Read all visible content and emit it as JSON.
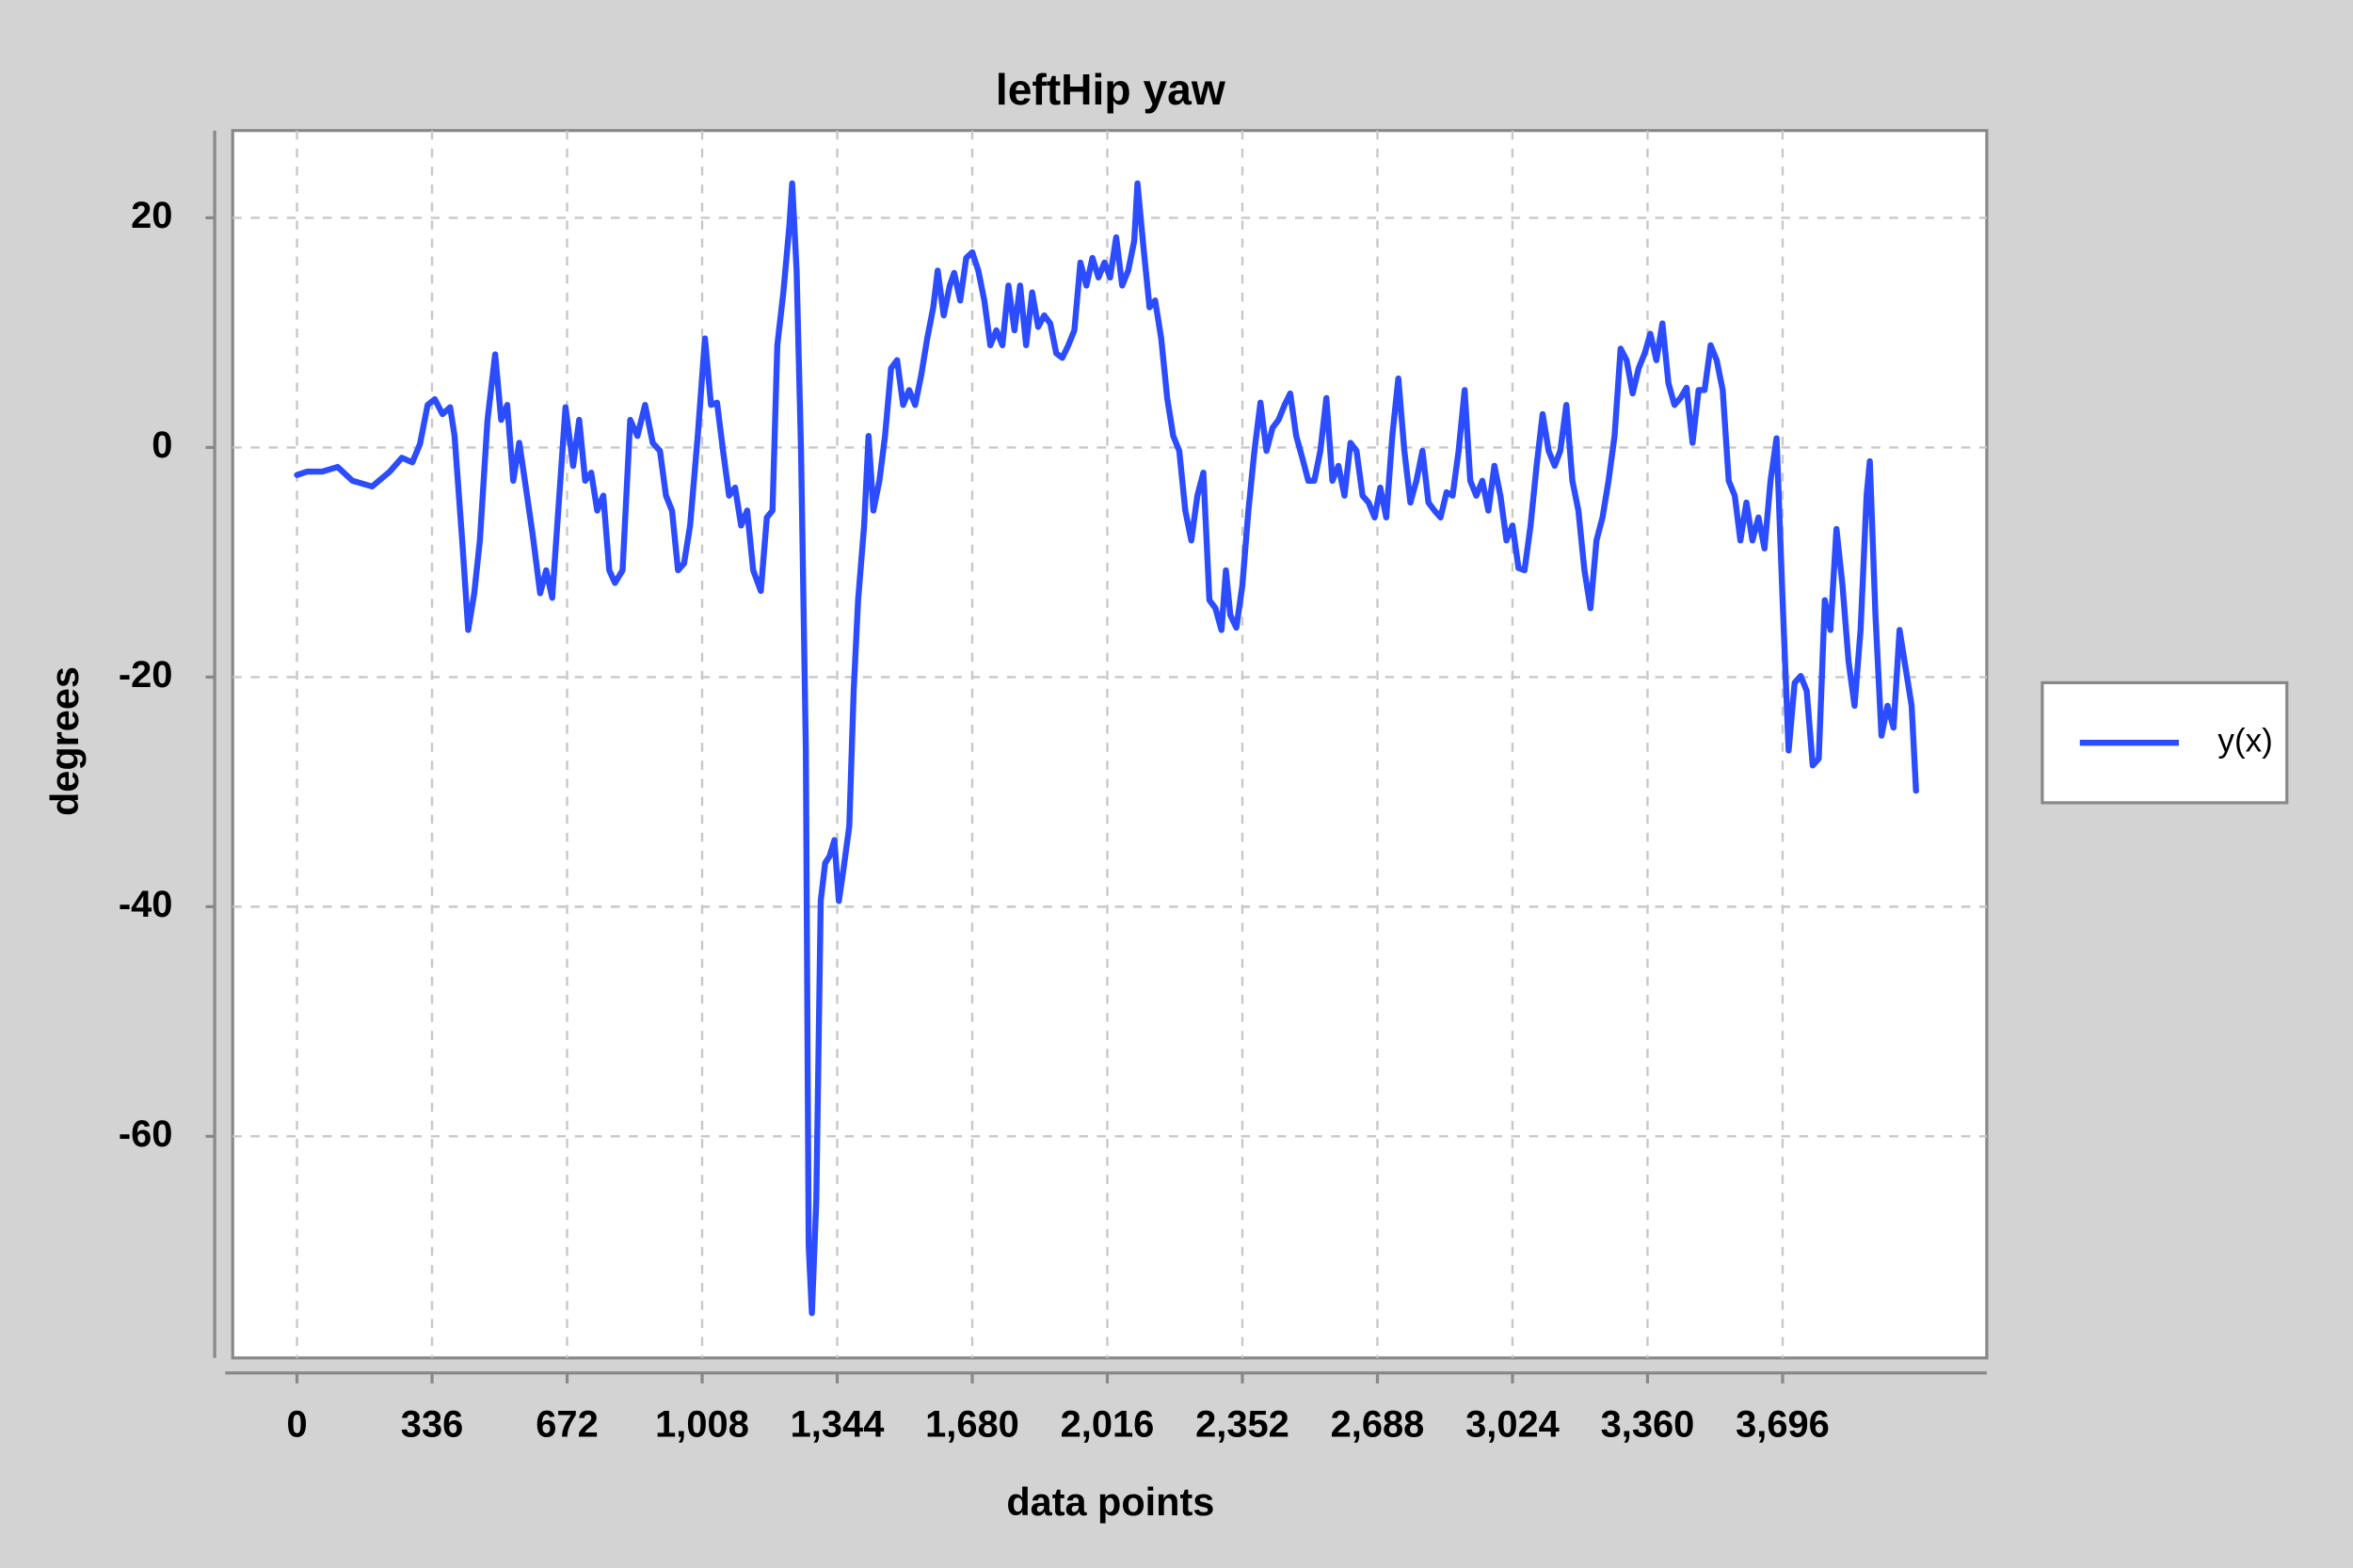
{
  "chart_data": {
    "type": "line",
    "title": "leftHip yaw",
    "xlabel": "data points",
    "ylabel": "degrees",
    "x": [
      0,
      26,
      63,
      101,
      138,
      187,
      231,
      261,
      287,
      306,
      325,
      343,
      362,
      381,
      392,
      411,
      426,
      441,
      455,
      474,
      493,
      508,
      523,
      538,
      553,
      567,
      586,
      605,
      620,
      635,
      650,
      668,
      687,
      702,
      717,
      732,
      747,
      762,
      777,
      791,
      810,
      829,
      847,
      866,
      885,
      903,
      918,
      933,
      948,
      963,
      978,
      997,
      1015,
      1030,
      1045,
      1060,
      1075,
      1090,
      1105,
      1120,
      1135,
      1154,
      1169,
      1183,
      1195,
      1210,
      1225,
      1232,
      1243,
      1254,
      1266,
      1273,
      1281,
      1292,
      1303,
      1314,
      1325,
      1337,
      1348,
      1359,
      1374,
      1385,
      1396,
      1411,
      1422,
      1434,
      1449,
      1463,
      1478,
      1493,
      1508,
      1523,
      1538,
      1553,
      1568,
      1583,
      1594,
      1609,
      1624,
      1635,
      1650,
      1665,
      1680,
      1695,
      1710,
      1725,
      1740,
      1755,
      1770,
      1785,
      1799,
      1814,
      1829,
      1844,
      1859,
      1874,
      1889,
      1904,
      1919,
      1934,
      1949,
      1964,
      1979,
      1994,
      2009,
      2023,
      2038,
      2053,
      2068,
      2083,
      2091,
      2106,
      2121,
      2135,
      2150,
      2165,
      2180,
      2195,
      2210,
      2225,
      2240,
      2255,
      2270,
      2285,
      2300,
      2311,
      2322,
      2337,
      2352,
      2367,
      2382,
      2397,
      2412,
      2427,
      2442,
      2457,
      2471,
      2486,
      2501,
      2516,
      2531,
      2546,
      2561,
      2576,
      2591,
      2606,
      2621,
      2636,
      2651,
      2666,
      2681,
      2695,
      2710,
      2725,
      2740,
      2755,
      2770,
      2785,
      2800,
      2815,
      2830,
      2845,
      2860,
      2875,
      2890,
      2905,
      2919,
      2934,
      2949,
      2964,
      2979,
      2994,
      3009,
      3024,
      3039,
      3054,
      3069,
      3084,
      3099,
      3114,
      3129,
      3143,
      3158,
      3173,
      3188,
      3203,
      3218,
      3233,
      3248,
      3263,
      3278,
      3293,
      3308,
      3323,
      3338,
      3353,
      3367,
      3382,
      3397,
      3412,
      3427,
      3442,
      3457,
      3472,
      3487,
      3502,
      3517,
      3532,
      3547,
      3562,
      3577,
      3591,
      3606,
      3621,
      3636,
      3651,
      3666,
      3681,
      3696,
      3711,
      3726,
      3741,
      3756,
      3771,
      3786,
      3801,
      3815,
      3830,
      3845,
      3860,
      3875,
      3890,
      3905,
      3913,
      3927,
      3942,
      3957,
      3972,
      3987,
      4002,
      4017,
      4028
    ],
    "series": [
      {
        "name": "y(x)",
        "color": "#2b4cff",
        "values": [
          -2.4,
          -2.1,
          -2.1,
          -1.7,
          -2.9,
          -3.4,
          -2.1,
          -0.9,
          -1.3,
          0.3,
          3.7,
          4.2,
          2.9,
          3.5,
          1.0,
          -8.1,
          -15.9,
          -12.7,
          -8.1,
          2.4,
          8.1,
          2.4,
          3.7,
          -2.9,
          0.4,
          -2.9,
          -7.5,
          -12.7,
          -10.7,
          -13.1,
          -5.5,
          3.5,
          -1.6,
          2.4,
          -2.9,
          -2.2,
          -5.5,
          -4.2,
          -10.7,
          -11.8,
          -10.7,
          2.4,
          1.0,
          3.7,
          0.4,
          -0.3,
          -4.2,
          -5.5,
          -10.7,
          -10.1,
          -6.8,
          1.0,
          9.5,
          3.7,
          3.9,
          -0.3,
          -4.2,
          -3.5,
          -6.8,
          -5.5,
          -10.7,
          -12.5,
          -6.1,
          -5.5,
          8.9,
          13.5,
          19.3,
          23.0,
          15.4,
          -0.3,
          -26.4,
          -69.5,
          -75.4,
          -65.6,
          -39.5,
          -36.2,
          -35.6,
          -34.2,
          -39.5,
          -36.9,
          -33.0,
          -21.2,
          -13.3,
          -6.8,
          1.0,
          -5.5,
          -2.9,
          1.0,
          6.9,
          7.6,
          3.7,
          5.0,
          3.7,
          6.3,
          9.5,
          12.2,
          15.4,
          11.5,
          14.1,
          15.2,
          12.8,
          16.5,
          17.0,
          15.4,
          12.8,
          8.9,
          10.2,
          8.9,
          14.1,
          10.2,
          14.1,
          8.9,
          13.5,
          10.5,
          11.5,
          10.8,
          8.2,
          7.8,
          8.9,
          10.2,
          16.1,
          14.1,
          16.5,
          14.8,
          16.1,
          14.8,
          18.3,
          14.1,
          15.4,
          18.0,
          23.0,
          17.4,
          12.2,
          12.8,
          9.5,
          4.3,
          1.0,
          -0.3,
          -5.5,
          -8.1,
          -4.2,
          -2.2,
          -13.3,
          -14.0,
          -15.9,
          -10.7,
          -14.6,
          -15.7,
          -12.0,
          -5.5,
          -0.3,
          3.9,
          -0.3,
          1.7,
          2.4,
          3.7,
          4.7,
          1.0,
          -0.9,
          -2.9,
          -2.9,
          -0.3,
          4.3,
          -2.9,
          -1.6,
          -4.2,
          0.4,
          -0.3,
          -4.2,
          -4.8,
          -6.1,
          -3.5,
          -6.1,
          1.0,
          6.0,
          -0.3,
          -4.8,
          -2.9,
          -0.3,
          -4.8,
          -5.5,
          -6.1,
          -3.9,
          -4.2,
          -0.3,
          5.0,
          -2.9,
          -4.2,
          -2.9,
          -5.5,
          -1.6,
          -4.2,
          -8.1,
          -6.8,
          -10.5,
          -10.7,
          -6.8,
          -1.6,
          2.9,
          -0.3,
          -1.6,
          -0.3,
          3.7,
          -2.9,
          -5.5,
          -10.7,
          -14.0,
          -8.1,
          -6.1,
          -2.9,
          1.0,
          8.6,
          7.6,
          4.7,
          6.9,
          8.2,
          9.9,
          7.6,
          10.8,
          5.6,
          3.7,
          4.3,
          5.2,
          0.4,
          5.0,
          5.0,
          8.9,
          7.6,
          5.0,
          -2.9,
          -4.2,
          -8.1,
          -4.8,
          -8.1,
          -6.1,
          -8.8,
          -2.9,
          0.8,
          -13.3,
          -26.4,
          -20.5,
          -19.9,
          -21.2,
          -27.7,
          -27.1,
          -13.3,
          -15.9,
          -7.1,
          -12.0,
          -18.6,
          -22.5,
          -15.9,
          -4.2,
          -1.2,
          -14.6,
          -25.1,
          -22.5,
          -24.4,
          -15.9,
          -19.2,
          -22.5,
          -29.9
        ]
      }
    ],
    "xlim": [
      -160,
      4204
    ],
    "ylim": [
      -79.3,
      27.6
    ],
    "xticks": [
      0,
      336,
      672,
      {
        "value": 1008,
        "label": "1,008"
      },
      {
        "value": 1344,
        "label": "1,344"
      },
      {
        "value": 1680,
        "label": "1,680"
      },
      {
        "value": 2016,
        "label": "2,016"
      },
      {
        "value": 2352,
        "label": "2,352"
      },
      {
        "value": 2688,
        "label": "2,688"
      },
      {
        "value": 3024,
        "label": "3,024"
      },
      {
        "value": 3360,
        "label": "3,360"
      },
      {
        "value": 3696,
        "label": "3,696"
      }
    ],
    "yticks": [
      -60,
      -40,
      -20,
      0,
      20
    ],
    "grid": true,
    "legend": "right"
  }
}
